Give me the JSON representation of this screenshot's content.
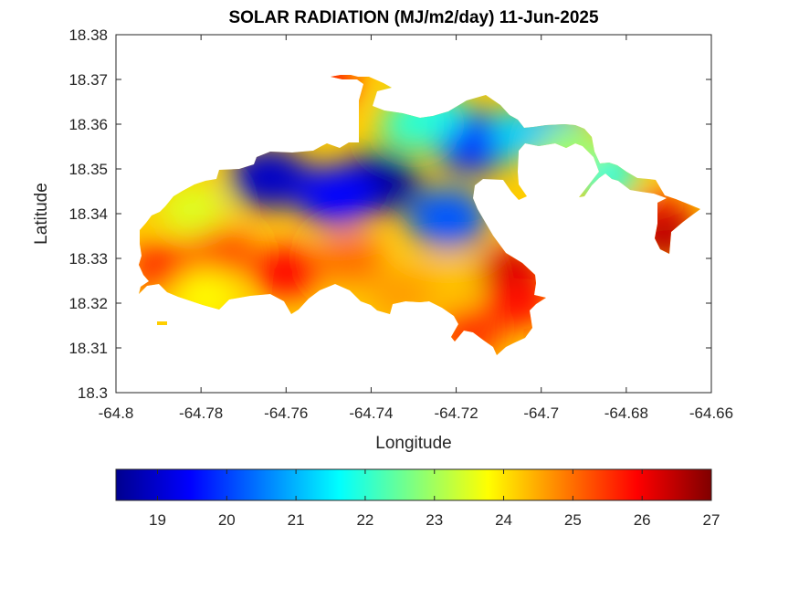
{
  "chart_data": {
    "type": "heatmap",
    "title": "SOLAR RADIATION (MJ/m2/day) 11-Jun-2025",
    "xlabel": "Longitude",
    "ylabel": "Latitude",
    "xlim": [
      -64.8,
      -64.66
    ],
    "ylim": [
      18.3,
      18.38
    ],
    "xticks": [
      -64.8,
      -64.78,
      -64.76,
      -64.74,
      -64.72,
      -64.7,
      -64.68,
      -64.66
    ],
    "xtick_labels": [
      "-64.8",
      "-64.78",
      "-64.76",
      "-64.74",
      "-64.72",
      "-64.7",
      "-64.68",
      "-64.66"
    ],
    "yticks": [
      18.3,
      18.31,
      18.32,
      18.33,
      18.34,
      18.35,
      18.36,
      18.37,
      18.38
    ],
    "ytick_labels": [
      "18.3",
      "18.31",
      "18.32",
      "18.33",
      "18.34",
      "18.35",
      "18.36",
      "18.37",
      "18.38"
    ],
    "colormap": "jet",
    "clim": [
      18.4,
      27
    ],
    "colorbar": {
      "position": "bottom",
      "ticks": [
        19,
        20,
        21,
        22,
        23,
        24,
        25,
        26,
        27
      ],
      "tick_labels": [
        "19",
        "20",
        "21",
        "22",
        "23",
        "24",
        "25",
        "26",
        "27"
      ]
    },
    "grid": false,
    "hotspots": [
      {
        "lon": -64.738,
        "lat": 18.347,
        "value": 18.6
      },
      {
        "lon": -64.764,
        "lat": 18.348,
        "value": 19.0
      },
      {
        "lon": -64.748,
        "lat": 18.344,
        "value": 19.5
      },
      {
        "lon": -64.716,
        "lat": 18.356,
        "value": 19.8
      },
      {
        "lon": -64.722,
        "lat": 18.339,
        "value": 20.2
      },
      {
        "lon": -64.726,
        "lat": 18.362,
        "value": 21.5
      },
      {
        "lon": -64.73,
        "lat": 18.36,
        "value": 22.0
      },
      {
        "lon": -64.704,
        "lat": 18.358,
        "value": 21.3
      },
      {
        "lon": -64.696,
        "lat": 18.358,
        "value": 21.0
      },
      {
        "lon": -64.782,
        "lat": 18.341,
        "value": 23.5
      },
      {
        "lon": -64.789,
        "lat": 18.328,
        "value": 25.6
      },
      {
        "lon": -64.775,
        "lat": 18.331,
        "value": 25.3
      },
      {
        "lon": -64.76,
        "lat": 18.327,
        "value": 25.9
      },
      {
        "lon": -64.745,
        "lat": 18.33,
        "value": 25.0
      },
      {
        "lon": -64.722,
        "lat": 18.325,
        "value": 24.3
      },
      {
        "lon": -64.733,
        "lat": 18.322,
        "value": 24.6
      },
      {
        "lon": -64.707,
        "lat": 18.327,
        "value": 26.3
      },
      {
        "lon": -64.705,
        "lat": 18.32,
        "value": 25.8
      },
      {
        "lon": -64.717,
        "lat": 18.313,
        "value": 25.5
      },
      {
        "lon": -64.779,
        "lat": 18.322,
        "value": 23.8
      },
      {
        "lon": -64.751,
        "lat": 18.369,
        "value": 25.8
      },
      {
        "lon": -64.672,
        "lat": 18.339,
        "value": 25.6
      },
      {
        "lon": -64.671,
        "lat": 18.335,
        "value": 26.5
      },
      {
        "lon": -64.685,
        "lat": 18.349,
        "value": 21.8
      },
      {
        "lon": -64.693,
        "lat": 18.354,
        "value": 23.0
      }
    ]
  }
}
